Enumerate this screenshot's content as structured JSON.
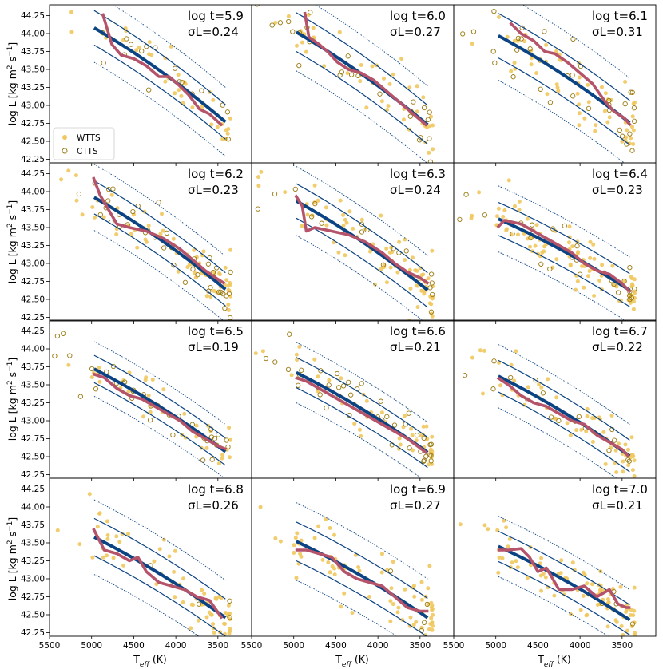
{
  "chart_data": {
    "type": "scatter",
    "grid": false,
    "xlim": [
      5500,
      3100
    ],
    "ylim": [
      42.2,
      44.4
    ],
    "xticks": [
      5500,
      5000,
      4500,
      4000,
      3500
    ],
    "yticks": [
      42.25,
      42.5,
      42.75,
      43.0,
      43.25,
      43.5,
      43.75,
      44.0,
      44.25
    ],
    "xlabel": {
      "main": "T",
      "sub": "eff",
      "unit": " (K)"
    },
    "ylabel": {
      "main": "log L [kg m",
      "sup1": "2",
      "mid": " s",
      "sup2": "−1",
      "end": "]"
    },
    "legend": {
      "placement": "lower-left of first panel",
      "items": [
        {
          "label": "WTTS",
          "marker": "filled circle",
          "color": "#F0C85E"
        },
        {
          "label": "CTTS",
          "marker": "open circle",
          "color": "#9A7A10"
        }
      ]
    },
    "colors": {
      "model": "#0B4383",
      "running_median": "#B5536B",
      "wtts": "#F0C85E",
      "ctts": "#9A7A10"
    },
    "fit_range_teff": [
      4970,
      3400
    ],
    "panels": [
      {
        "age_label": "log t=5.9",
        "sigma_label": "σL=0.24",
        "fit": [
          44.08,
          42.76
        ],
        "sigma": 0.24,
        "median": [
          [
            4870,
            44.28
          ],
          [
            4760,
            43.85
          ],
          [
            4650,
            43.7
          ],
          [
            4500,
            43.65
          ],
          [
            4350,
            43.55
          ],
          [
            4200,
            43.4
          ],
          [
            4080,
            43.4
          ],
          [
            3980,
            43.3
          ],
          [
            3850,
            43.15
          ],
          [
            3720,
            42.95
          ],
          [
            3600,
            42.88
          ],
          [
            3450,
            42.72
          ]
        ]
      },
      {
        "age_label": "log t=6.0",
        "sigma_label": "σL=0.27",
        "fit": [
          44.02,
          42.72
        ],
        "sigma": 0.27,
        "median": [
          [
            4870,
            44.3
          ],
          [
            4820,
            43.95
          ],
          [
            4700,
            43.85
          ],
          [
            4600,
            43.75
          ],
          [
            4480,
            43.6
          ],
          [
            4350,
            43.5
          ],
          [
            4200,
            43.45
          ],
          [
            4050,
            43.35
          ],
          [
            3900,
            43.2
          ],
          [
            3750,
            43.05
          ],
          [
            3600,
            42.9
          ],
          [
            3420,
            42.72
          ]
        ]
      },
      {
        "age_label": "log t=6.1",
        "sigma_label": "σL=0.31",
        "fit": [
          43.97,
          42.75
        ],
        "sigma": 0.31,
        "median": [
          [
            4830,
            44.15
          ],
          [
            4700,
            44.0
          ],
          [
            4550,
            43.9
          ],
          [
            4420,
            43.75
          ],
          [
            4300,
            43.72
          ],
          [
            4150,
            43.6
          ],
          [
            4000,
            43.45
          ],
          [
            3850,
            43.3
          ],
          [
            3700,
            43.05
          ],
          [
            3600,
            42.92
          ],
          [
            3470,
            42.82
          ],
          [
            3400,
            42.72
          ]
        ]
      },
      {
        "age_label": "log t=6.2",
        "sigma_label": "σL=0.23",
        "fit": [
          43.92,
          42.63
        ],
        "sigma": 0.23,
        "median": [
          [
            4980,
            44.2
          ],
          [
            4900,
            43.95
          ],
          [
            4800,
            43.75
          ],
          [
            4700,
            43.55
          ],
          [
            4550,
            43.5
          ],
          [
            4350,
            43.45
          ],
          [
            4150,
            43.35
          ],
          [
            3950,
            43.2
          ],
          [
            3800,
            43.05
          ],
          [
            3650,
            42.9
          ],
          [
            3500,
            42.78
          ],
          [
            3420,
            42.72
          ]
        ]
      },
      {
        "age_label": "log t=6.3",
        "sigma_label": "σL=0.24",
        "fit": [
          43.87,
          42.62
        ],
        "sigma": 0.24,
        "median": [
          [
            4980,
            43.95
          ],
          [
            4900,
            43.8
          ],
          [
            4850,
            43.45
          ],
          [
            4750,
            43.5
          ],
          [
            4550,
            43.45
          ],
          [
            4350,
            43.4
          ],
          [
            4150,
            43.3
          ],
          [
            3950,
            43.15
          ],
          [
            3800,
            43.0
          ],
          [
            3650,
            42.88
          ],
          [
            3500,
            42.8
          ],
          [
            3400,
            42.72
          ]
        ]
      },
      {
        "age_label": "log t=6.4",
        "sigma_label": "σL=0.23",
        "fit": [
          43.62,
          42.62
        ],
        "sigma": 0.23,
        "median": [
          [
            4980,
            43.5
          ],
          [
            4900,
            43.6
          ],
          [
            4700,
            43.55
          ],
          [
            4550,
            43.45
          ],
          [
            4400,
            43.35
          ],
          [
            4250,
            43.25
          ],
          [
            4100,
            43.15
          ],
          [
            3950,
            43.0
          ],
          [
            3800,
            42.9
          ],
          [
            3650,
            42.85
          ],
          [
            3500,
            42.72
          ],
          [
            3400,
            42.6
          ]
        ]
      },
      {
        "age_label": "log t=6.5",
        "sigma_label": "σL=0.19",
        "fit": [
          43.72,
          42.56
        ],
        "sigma": 0.19,
        "median": [
          [
            4980,
            43.65
          ],
          [
            4850,
            43.6
          ],
          [
            4700,
            43.45
          ],
          [
            4550,
            43.35
          ],
          [
            4400,
            43.3
          ],
          [
            4250,
            43.2
          ],
          [
            4100,
            43.1
          ],
          [
            3950,
            43.0
          ],
          [
            3800,
            42.85
          ],
          [
            3650,
            42.75
          ],
          [
            3500,
            42.65
          ],
          [
            3400,
            42.6
          ]
        ]
      },
      {
        "age_label": "log t=6.6",
        "sigma_label": "σL=0.21",
        "fit": [
          43.67,
          42.55
        ],
        "sigma": 0.21,
        "median": [
          [
            4980,
            43.6
          ],
          [
            4850,
            43.55
          ],
          [
            4700,
            43.45
          ],
          [
            4550,
            43.35
          ],
          [
            4400,
            43.25
          ],
          [
            4250,
            43.15
          ],
          [
            4100,
            43.05
          ],
          [
            3950,
            42.95
          ],
          [
            3800,
            42.85
          ],
          [
            3650,
            42.75
          ],
          [
            3500,
            42.62
          ],
          [
            3420,
            42.55
          ]
        ]
      },
      {
        "age_label": "log t=6.7",
        "sigma_label": "σL=0.22",
        "fit": [
          43.62,
          42.5
        ],
        "sigma": 0.22,
        "median": [
          [
            4980,
            43.6
          ],
          [
            4850,
            43.5
          ],
          [
            4700,
            43.35
          ],
          [
            4550,
            43.25
          ],
          [
            4400,
            43.2
          ],
          [
            4250,
            43.1
          ],
          [
            4100,
            43.0
          ],
          [
            3950,
            42.95
          ],
          [
            3800,
            42.8
          ],
          [
            3650,
            42.7
          ],
          [
            3500,
            42.6
          ],
          [
            3420,
            42.5
          ]
        ]
      },
      {
        "age_label": "log t=6.8",
        "sigma_label": "σL=0.26",
        "fit": [
          43.58,
          42.45
        ],
        "sigma": 0.26,
        "median": [
          [
            4980,
            43.7
          ],
          [
            4850,
            43.4
          ],
          [
            4700,
            43.35
          ],
          [
            4550,
            43.25
          ],
          [
            4450,
            43.3
          ],
          [
            4350,
            43.1
          ],
          [
            4200,
            42.95
          ],
          [
            4050,
            42.9
          ],
          [
            3900,
            42.85
          ],
          [
            3750,
            42.75
          ],
          [
            3600,
            42.7
          ],
          [
            3450,
            42.45
          ]
        ]
      },
      {
        "age_label": "log t=6.9",
        "sigma_label": "σL=0.27",
        "fit": [
          43.52,
          42.45
        ],
        "sigma": 0.27,
        "median": [
          [
            4980,
            43.4
          ],
          [
            4850,
            43.4
          ],
          [
            4700,
            43.35
          ],
          [
            4550,
            43.3
          ],
          [
            4400,
            43.1
          ],
          [
            4250,
            43.0
          ],
          [
            4100,
            42.95
          ],
          [
            3950,
            42.9
          ],
          [
            3800,
            42.75
          ],
          [
            3650,
            42.6
          ],
          [
            3500,
            42.55
          ],
          [
            3400,
            42.55
          ]
        ]
      },
      {
        "age_label": "log t=7.0",
        "sigma_label": "σL=0.21",
        "fit": [
          43.45,
          42.42
        ],
        "sigma": 0.21,
        "median": [
          [
            4980,
            43.4
          ],
          [
            4850,
            43.4
          ],
          [
            4700,
            43.42
          ],
          [
            4600,
            43.3
          ],
          [
            4500,
            43.1
          ],
          [
            4400,
            43.15
          ],
          [
            4250,
            42.85
          ],
          [
            4100,
            42.85
          ],
          [
            3950,
            42.9
          ],
          [
            3800,
            42.75
          ],
          [
            3650,
            42.85
          ],
          [
            3550,
            42.65
          ],
          [
            3450,
            42.6
          ],
          [
            3400,
            42.6
          ]
        ]
      }
    ]
  }
}
